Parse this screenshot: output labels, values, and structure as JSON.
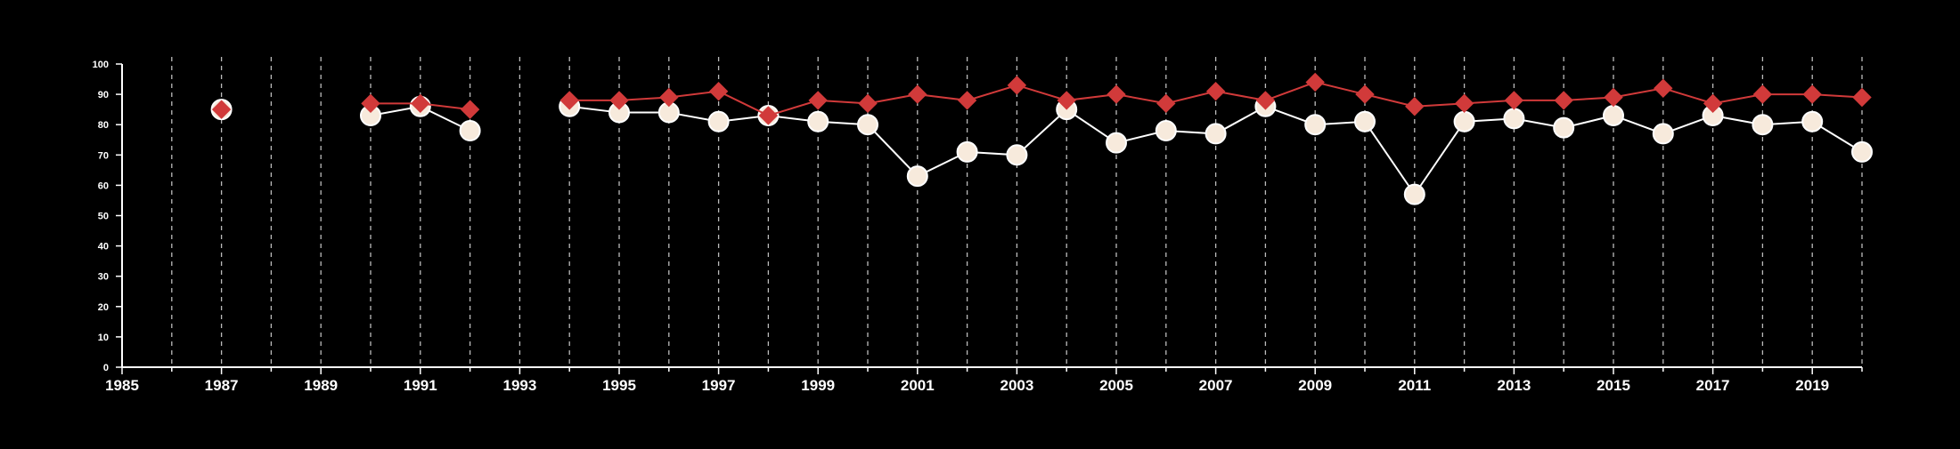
{
  "chart_data": {
    "type": "line",
    "title": "",
    "xlabel": "",
    "ylabel": "",
    "xlim": [
      1985,
      2020
    ],
    "ylim": [
      0,
      100
    ],
    "x_ticks": [
      1985,
      1986,
      1987,
      1988,
      1989,
      1990,
      1991,
      1992,
      1993,
      1994,
      1995,
      1996,
      1997,
      1998,
      1999,
      2000,
      2001,
      2002,
      2003,
      2004,
      2005,
      2006,
      2007,
      2008,
      2009,
      2010,
      2011,
      2012,
      2013,
      2014,
      2015,
      2016,
      2017,
      2018,
      2019,
      2020
    ],
    "x_tick_labels": [
      "1985",
      "",
      "1987",
      "",
      "1989",
      "",
      "1991",
      "",
      "1993",
      "",
      "1995",
      "",
      "1997",
      "",
      "1999",
      "",
      "2001",
      "",
      "2003",
      "",
      "2005",
      "",
      "2007",
      "",
      "2009",
      "",
      "2011",
      "",
      "2013",
      "",
      "2015",
      "",
      "2017",
      "",
      "2019",
      ""
    ],
    "y_ticks": [
      0,
      10,
      20,
      30,
      40,
      50,
      60,
      70,
      80,
      90,
      100
    ],
    "y_tick_labels": [
      "0",
      "10",
      "20",
      "30",
      "40",
      "50",
      "60",
      "70",
      "80",
      "90",
      "100"
    ],
    "grid": "vertical dashed",
    "legend": "none",
    "series": [
      {
        "marker": "circle",
        "color": "#ffffff",
        "fill": "#f7eadc",
        "x": [
          1987,
          1990,
          1991,
          1992,
          1994,
          1995,
          1996,
          1997,
          1998,
          1999,
          2000,
          2001,
          2002,
          2003,
          2004,
          2005,
          2006,
          2007,
          2008,
          2009,
          2010,
          2011,
          2012,
          2013,
          2014,
          2015,
          2016,
          2017,
          2018,
          2019,
          2020
        ],
        "values": [
          85,
          83,
          86,
          78,
          86,
          84,
          84,
          81,
          83,
          81,
          80,
          63,
          71,
          70,
          85,
          74,
          78,
          77,
          86,
          80,
          81,
          57,
          81,
          82,
          79,
          83,
          77,
          83,
          80,
          81,
          71
        ]
      },
      {
        "marker": "diamond",
        "color": "#d13a3a",
        "fill": "#d13a3a",
        "x": [
          1987,
          1990,
          1991,
          1992,
          1994,
          1995,
          1996,
          1997,
          1998,
          1999,
          2000,
          2001,
          2002,
          2003,
          2004,
          2005,
          2006,
          2007,
          2008,
          2009,
          2010,
          2011,
          2012,
          2013,
          2014,
          2015,
          2016,
          2017,
          2018,
          2019,
          2020
        ],
        "values": [
          85,
          87,
          87,
          85,
          88,
          88,
          89,
          91,
          83,
          88,
          87,
          90,
          88,
          93,
          88,
          90,
          87,
          91,
          88,
          94,
          90,
          86,
          87,
          88,
          88,
          89,
          92,
          87,
          90,
          90,
          89
        ]
      }
    ]
  },
  "colors": {
    "background": "#000000",
    "axis": "#ffffff",
    "grid": "#bbbbbb"
  }
}
